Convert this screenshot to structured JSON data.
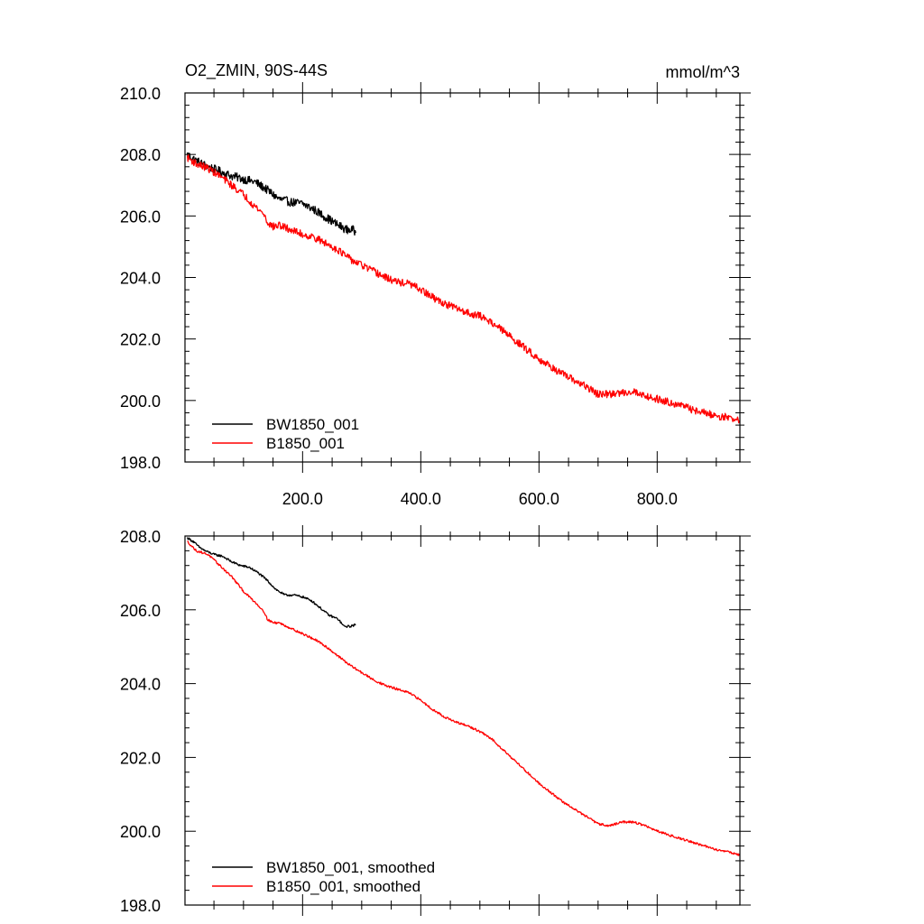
{
  "chart_data": [
    {
      "type": "line",
      "title": "O2_ZMIN, 90S-44S",
      "units": "mmol/m^3",
      "xlim": [
        1,
        940
      ],
      "ylim": [
        198,
        210
      ],
      "xticks": [
        200,
        400,
        600,
        800
      ],
      "xtick_labels": [
        "200.0",
        "400.0",
        "600.0",
        "800.0"
      ],
      "yticks": [
        198,
        200,
        202,
        204,
        206,
        208,
        210
      ],
      "ytick_labels": [
        "198.0",
        "200.0",
        "202.0",
        "204.0",
        "206.0",
        "208.0",
        "210.0"
      ],
      "legend_position": "bottom-left",
      "series": [
        {
          "name": "BW1850_001",
          "color": "#000000",
          "x": [
            5,
            20,
            40,
            60,
            80,
            100,
            120,
            140,
            160,
            180,
            200,
            220,
            240,
            260,
            275,
            285,
            290
          ],
          "y": [
            208.0,
            207.8,
            207.6,
            207.45,
            207.3,
            207.2,
            207.1,
            206.85,
            206.55,
            206.45,
            206.4,
            206.2,
            205.95,
            205.7,
            205.55,
            205.55,
            205.45
          ],
          "noise": 0.14
        },
        {
          "name": "B1850_001",
          "color": "#ff0000",
          "x": [
            5,
            20,
            40,
            60,
            80,
            100,
            120,
            135,
            140,
            150,
            160,
            180,
            200,
            220,
            240,
            260,
            280,
            300,
            320,
            340,
            360,
            380,
            400,
            420,
            440,
            460,
            480,
            500,
            520,
            540,
            560,
            580,
            600,
            620,
            640,
            660,
            680,
            700,
            720,
            740,
            760,
            780,
            800,
            820,
            840,
            860,
            880,
            900,
            920,
            940
          ],
          "y": [
            207.9,
            207.7,
            207.55,
            207.3,
            207.0,
            206.7,
            206.3,
            206.05,
            205.8,
            205.65,
            205.7,
            205.55,
            205.4,
            205.3,
            205.1,
            204.9,
            204.6,
            204.4,
            204.2,
            204.0,
            203.85,
            203.8,
            203.6,
            203.35,
            203.15,
            203.0,
            202.85,
            202.75,
            202.55,
            202.25,
            201.95,
            201.65,
            201.35,
            201.1,
            200.85,
            200.65,
            200.45,
            200.2,
            200.2,
            200.25,
            200.3,
            200.15,
            200.05,
            199.95,
            199.85,
            199.7,
            199.6,
            199.5,
            199.45,
            199.35
          ],
          "noise": 0.12
        }
      ]
    },
    {
      "type": "line",
      "xlim": [
        1,
        940
      ],
      "ylim": [
        198,
        208
      ],
      "xticks": [
        200,
        400,
        600,
        800
      ],
      "yticks": [
        198,
        200,
        202,
        204,
        206,
        208
      ],
      "ytick_labels": [
        "198.0",
        "200.0",
        "202.0",
        "204.0",
        "206.0",
        "208.0"
      ],
      "legend_position": "bottom-left",
      "series": [
        {
          "name": "BW1850_001, smoothed",
          "color": "#000000",
          "x": [
            5,
            15,
            25,
            35,
            50,
            65,
            80,
            95,
            110,
            125,
            140,
            155,
            170,
            185,
            200,
            215,
            230,
            245,
            260,
            270,
            280,
            290
          ],
          "y": [
            207.95,
            207.85,
            207.7,
            207.6,
            207.5,
            207.45,
            207.3,
            207.2,
            207.15,
            207.0,
            206.8,
            206.55,
            206.4,
            206.4,
            206.35,
            206.25,
            206.05,
            205.85,
            205.75,
            205.55,
            205.55,
            205.6
          ],
          "noise": 0.03
        },
        {
          "name": "B1850_001, smoothed",
          "color": "#ff0000",
          "x": [
            5,
            20,
            40,
            60,
            80,
            100,
            120,
            135,
            140,
            150,
            160,
            180,
            200,
            220,
            240,
            260,
            280,
            300,
            320,
            340,
            360,
            380,
            400,
            420,
            440,
            460,
            480,
            500,
            520,
            540,
            560,
            580,
            600,
            620,
            640,
            660,
            680,
            700,
            720,
            740,
            760,
            780,
            800,
            820,
            840,
            860,
            880,
            900,
            920,
            940
          ],
          "y": [
            207.85,
            207.6,
            207.5,
            207.2,
            206.9,
            206.5,
            206.2,
            205.95,
            205.75,
            205.65,
            205.65,
            205.5,
            205.35,
            205.2,
            205.0,
            204.75,
            204.5,
            204.3,
            204.1,
            203.95,
            203.85,
            203.75,
            203.55,
            203.3,
            203.1,
            202.95,
            202.85,
            202.7,
            202.5,
            202.2,
            201.9,
            201.6,
            201.3,
            201.05,
            200.8,
            200.6,
            200.4,
            200.2,
            200.15,
            200.25,
            200.25,
            200.15,
            200.0,
            199.9,
            199.8,
            199.7,
            199.6,
            199.5,
            199.45,
            199.35
          ],
          "noise": 0.03
        }
      ]
    }
  ]
}
